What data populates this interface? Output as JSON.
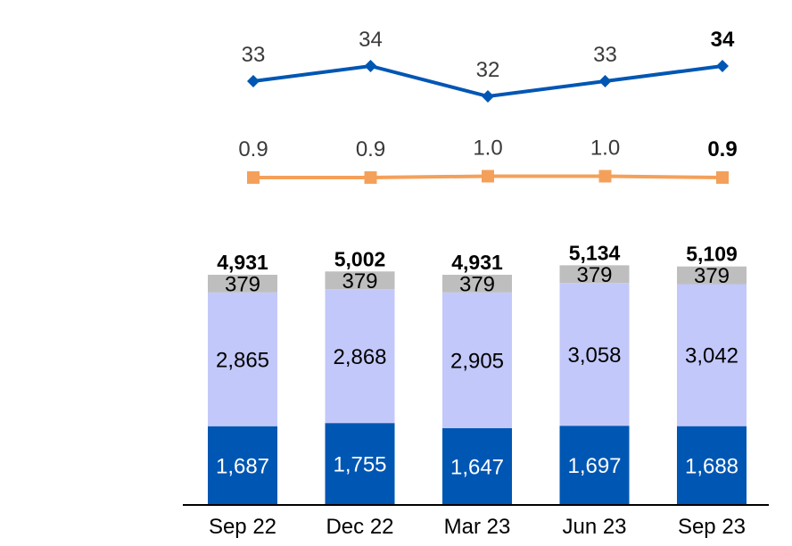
{
  "chart_data": {
    "type": "bar",
    "categories": [
      "Sep 22",
      "Dec 22",
      "Mar 23",
      "Jun 23",
      "Sep 23"
    ],
    "stacked": true,
    "series": [
      {
        "values": [
          1687,
          1755,
          1647,
          1697,
          1688
        ],
        "color": "#0056b3"
      },
      {
        "values": [
          2865,
          2868,
          2905,
          3058,
          3042
        ],
        "color": "#c3c8fa"
      },
      {
        "values": [
          379,
          379,
          379,
          379,
          379
        ],
        "color": "#bebebe"
      }
    ],
    "totals": [
      "4,931",
      "5,002",
      "4,931",
      "5,134",
      "5,109"
    ],
    "segment_labels": [
      [
        "1,687",
        "1,755",
        "1,647",
        "1,697",
        "1,688"
      ],
      [
        "2,865",
        "2,868",
        "2,905",
        "3,058",
        "3,042"
      ],
      [
        "379",
        "379",
        "379",
        "379",
        "379"
      ]
    ],
    "lines": [
      {
        "values": [
          33,
          34,
          32,
          33,
          34
        ],
        "labels": [
          "33",
          "34",
          "32",
          "33",
          "34"
        ],
        "color": "#0056b3",
        "marker": "diamond"
      },
      {
        "values": [
          0.9,
          0.9,
          1.0,
          1.0,
          0.9
        ],
        "labels": [
          "0.9",
          "0.9",
          "1.0",
          "1.0",
          "0.9"
        ],
        "color": "#f4a05a",
        "marker": "square"
      }
    ],
    "bold_last_line_label": true,
    "xlabel": "",
    "ylabel": "",
    "grid": false,
    "legend": "none"
  }
}
